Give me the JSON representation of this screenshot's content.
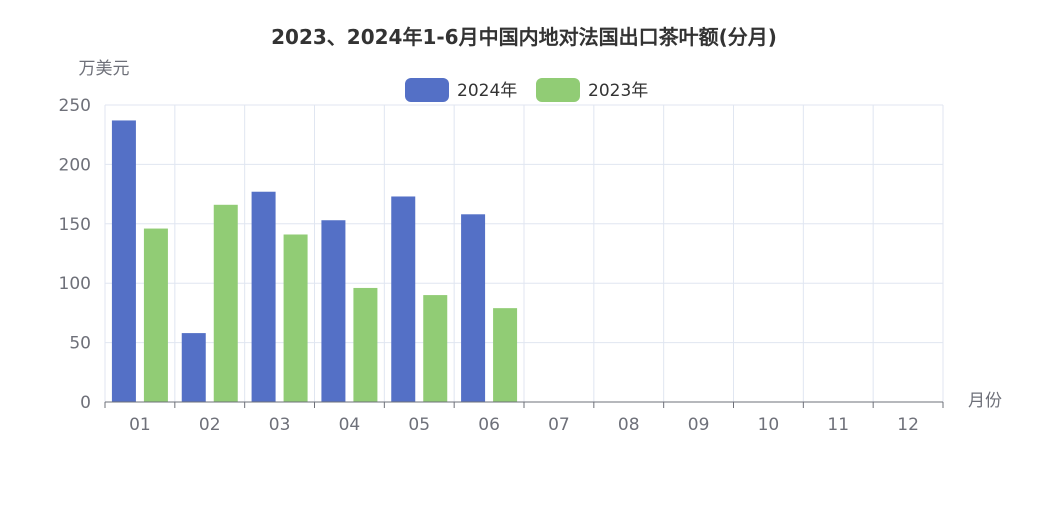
{
  "chart_data": {
    "type": "bar",
    "title": "2023、2024年1-6月中国内地对法国出口茶叶额(分月)",
    "ylabel": "万美元",
    "xlabel": "月份",
    "categories": [
      "01",
      "02",
      "03",
      "04",
      "05",
      "06",
      "07",
      "08",
      "09",
      "10",
      "11",
      "12"
    ],
    "ylim": [
      0,
      250
    ],
    "yticks": [
      0,
      50,
      100,
      150,
      200,
      250
    ],
    "grid": true,
    "legend": "top-center",
    "series": [
      {
        "name": "2024年",
        "color": "#5470c6",
        "values": [
          237,
          58,
          177,
          153,
          173,
          158,
          null,
          null,
          null,
          null,
          null,
          null
        ]
      },
      {
        "name": "2023年",
        "color": "#91cc75",
        "values": [
          146,
          166,
          141,
          96,
          90,
          79,
          null,
          null,
          null,
          null,
          null,
          null
        ]
      }
    ]
  }
}
